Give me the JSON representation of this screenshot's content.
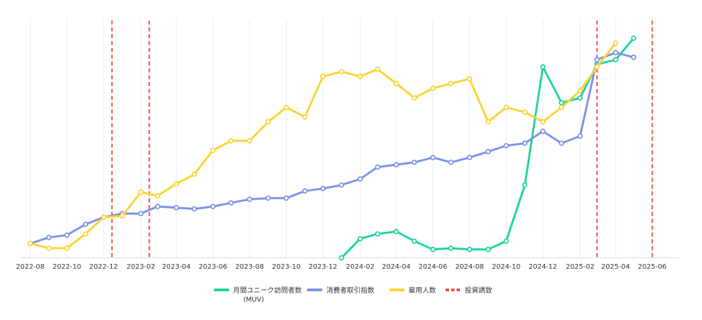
{
  "chart_data": {
    "type": "line",
    "title": "",
    "xlabel": "",
    "ylabel": "",
    "x_tick_labels": [
      "2022-08",
      "2022-10",
      "2022-12",
      "2023-02",
      "2023-04",
      "2023-06",
      "2023-08",
      "2023-10",
      "2023-12",
      "2024-02",
      "2024-04",
      "2024-06",
      "2024-08",
      "2024-10",
      "2024-12",
      "2025-02",
      "2025-04",
      "2025-06"
    ],
    "x_range": [
      "2022-07-25",
      "2025-07-15"
    ],
    "y_axis_labels": "none",
    "y_scale": "relative index (0 = bottom, 100 = top)",
    "ylim": [
      0,
      100
    ],
    "grid": "vertical only",
    "legend_position": "bottom",
    "series": [
      {
        "name": "月間ユニーク訪問者数\n(MUV)",
        "color": "#1fd3a0",
        "points": [
          [
            "2024-01",
            0
          ],
          [
            "2024-02",
            8
          ],
          [
            "2024-03",
            10
          ],
          [
            "2024-04",
            11
          ],
          [
            "2024-05",
            7
          ],
          [
            "2024-06",
            3.5
          ],
          [
            "2024-07",
            4
          ],
          [
            "2024-08",
            3.5
          ],
          [
            "2024-09",
            3.5
          ],
          [
            "2024-10",
            7
          ],
          [
            "2024-11",
            30.5
          ],
          [
            "2024-12",
            80
          ],
          [
            "2025-01",
            65
          ],
          [
            "2025-02",
            67
          ],
          [
            "2025-03",
            81
          ],
          [
            "2025-04",
            83
          ],
          [
            "2025-05",
            92
          ]
        ]
      },
      {
        "name": "消費者取引指数",
        "color": "#7b93e6",
        "points": [
          [
            "2022-08",
            6
          ],
          [
            "2022-09",
            8.5
          ],
          [
            "2022-10",
            9.5
          ],
          [
            "2022-11",
            14
          ],
          [
            "2022-12",
            17
          ],
          [
            "2023-01",
            18.5
          ],
          [
            "2023-02",
            18.5
          ],
          [
            "2023-03",
            21.5
          ],
          [
            "2023-04",
            21
          ],
          [
            "2023-05",
            20.5
          ],
          [
            "2023-06",
            21.5
          ],
          [
            "2023-07",
            23
          ],
          [
            "2023-08",
            24.5
          ],
          [
            "2023-09",
            25
          ],
          [
            "2023-10",
            25
          ],
          [
            "2023-11",
            28
          ],
          [
            "2023-12",
            29
          ],
          [
            "2024-01",
            30.5
          ],
          [
            "2024-02",
            33
          ],
          [
            "2024-03",
            38
          ],
          [
            "2024-04",
            39
          ],
          [
            "2024-05",
            40
          ],
          [
            "2024-06",
            42
          ],
          [
            "2024-07",
            40
          ],
          [
            "2024-08",
            42
          ],
          [
            "2024-09",
            44.5
          ],
          [
            "2024-10",
            47
          ],
          [
            "2024-11",
            48
          ],
          [
            "2024-12",
            53
          ],
          [
            "2025-01",
            48
          ],
          [
            "2025-02",
            51
          ],
          [
            "2025-03",
            83
          ],
          [
            "2025-04",
            86
          ],
          [
            "2025-05",
            84
          ]
        ]
      },
      {
        "name": "雇用人数",
        "color": "#fbd335",
        "points": [
          [
            "2022-08",
            6
          ],
          [
            "2022-09",
            4
          ],
          [
            "2022-10",
            4
          ],
          [
            "2022-11",
            10
          ],
          [
            "2022-12",
            17
          ],
          [
            "2023-01",
            17.5
          ],
          [
            "2023-02",
            27.5
          ],
          [
            "2023-03",
            26
          ],
          [
            "2023-04",
            31
          ],
          [
            "2023-05",
            35
          ],
          [
            "2023-06",
            45
          ],
          [
            "2023-07",
            49
          ],
          [
            "2023-08",
            49
          ],
          [
            "2023-09",
            57
          ],
          [
            "2023-10",
            63
          ],
          [
            "2023-11",
            59
          ],
          [
            "2023-12",
            76
          ],
          [
            "2024-01",
            78
          ],
          [
            "2024-02",
            76
          ],
          [
            "2024-03",
            79
          ],
          [
            "2024-04",
            73
          ],
          [
            "2024-05",
            67
          ],
          [
            "2024-06",
            71
          ],
          [
            "2024-07",
            73
          ],
          [
            "2024-08",
            75
          ],
          [
            "2024-09",
            57
          ],
          [
            "2024-10",
            63
          ],
          [
            "2024-11",
            61
          ],
          [
            "2024-12",
            57
          ],
          [
            "2025-01",
            63
          ],
          [
            "2025-02",
            70
          ],
          [
            "2025-03",
            80
          ],
          [
            "2025-04",
            90
          ]
        ]
      }
    ],
    "investment_markers": {
      "name": "投資誘致",
      "color": "#e8514f",
      "dates": [
        "2022-12-15",
        "2023-02-15",
        "2025-03-01",
        "2025-06-01"
      ]
    }
  }
}
